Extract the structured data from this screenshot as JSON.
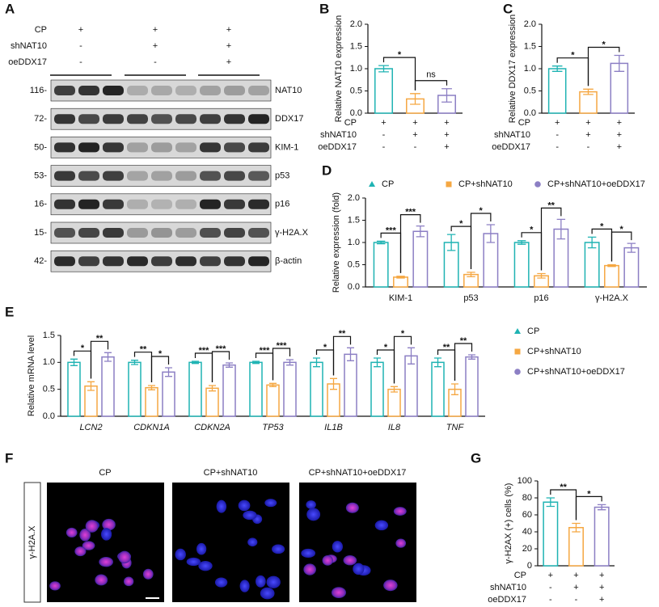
{
  "panel_labels": [
    "A",
    "B",
    "C",
    "D",
    "E",
    "F",
    "G"
  ],
  "blot": {
    "conditions": [
      {
        "name": "CP",
        "signs": [
          "+",
          "+",
          "+"
        ]
      },
      {
        "name": "shNAT10",
        "signs": [
          "-",
          "+",
          "+"
        ]
      },
      {
        "name": "oeDDX17",
        "signs": [
          "-",
          "-",
          "+"
        ]
      }
    ],
    "rows": [
      {
        "kda": "116-",
        "protein": "NAT10"
      },
      {
        "kda": "72-",
        "protein": "DDX17"
      },
      {
        "kda": "50-",
        "protein": "KIM-1"
      },
      {
        "kda": "53-",
        "protein": "p53"
      },
      {
        "kda": "16-",
        "protein": "p16"
      },
      {
        "kda": "15-",
        "protein": "γ-H2A.X"
      },
      {
        "kda": "42-",
        "protein": "β-actin"
      }
    ]
  },
  "microscopy": {
    "stain": "γ-H2A.X",
    "panels": [
      "CP",
      "CP+shNAT10",
      "CP+shNAT10+oeDDX17"
    ]
  },
  "chart_data": [
    {
      "type": "bar",
      "y_label": "Relative NAT10 expression",
      "values": [
        1.0,
        0.32,
        0.4
      ],
      "errors": [
        0.07,
        0.12,
        0.15
      ],
      "colors": [
        "#1fb3b3",
        "#f5a742",
        "#8c7fc4"
      ],
      "ylim": [
        0,
        2.0
      ],
      "yticks": [
        {
          "value": 0,
          "label": "0.0"
        },
        {
          "value": 0.5,
          "label": "0.5"
        },
        {
          "value": 1.0,
          "label": "1.0"
        },
        {
          "value": 1.5,
          "label": "1.5"
        },
        {
          "value": 2.0,
          "label": "2.0"
        }
      ],
      "conditions": [
        {
          "name": "CP",
          "signs": [
            "+",
            "+",
            "+"
          ]
        },
        {
          "name": "shNAT10",
          "signs": [
            "-",
            "+",
            "+"
          ]
        },
        {
          "name": "oeDDX17",
          "signs": [
            "-",
            "-",
            "+"
          ]
        }
      ],
      "significance": [
        {
          "bars": [
            0,
            1
          ],
          "label": "*"
        },
        {
          "bars": [
            1,
            2
          ],
          "label": "ns"
        }
      ]
    },
    {
      "type": "bar",
      "y_label": "Relative DDX17 expression",
      "values": [
        1.0,
        0.48,
        1.12
      ],
      "errors": [
        0.06,
        0.06,
        0.18
      ],
      "colors": [
        "#1fb3b3",
        "#f5a742",
        "#8c7fc4"
      ],
      "ylim": [
        0,
        2.0
      ],
      "yticks": [
        {
          "value": 0,
          "label": "0.0"
        },
        {
          "value": 0.5,
          "label": "0.5"
        },
        {
          "value": 1.0,
          "label": "1.0"
        },
        {
          "value": 1.5,
          "label": "1.5"
        },
        {
          "value": 2.0,
          "label": "2.0"
        }
      ],
      "conditions": [
        {
          "name": "CP",
          "signs": [
            "+",
            "+",
            "+"
          ]
        },
        {
          "name": "shNAT10",
          "signs": [
            "-",
            "+",
            "+"
          ]
        },
        {
          "name": "oeDDX17",
          "signs": [
            "-",
            "-",
            "+"
          ]
        }
      ],
      "significance": [
        {
          "bars": [
            0,
            1
          ],
          "label": "*"
        },
        {
          "bars": [
            1,
            2
          ],
          "label": "*"
        }
      ]
    },
    {
      "type": "bar",
      "y_label": "Relative expression (fold)",
      "categories": [
        "KIM-1",
        "p53",
        "p16",
        "γ-H2A.X"
      ],
      "series": [
        {
          "name": "CP",
          "color": "#1fb3b3",
          "marker": "triangle",
          "values": [
            1.0,
            1.0,
            1.0,
            1.0
          ],
          "errors": [
            0.03,
            0.18,
            0.04,
            0.12
          ]
        },
        {
          "name": "CP+shNAT10",
          "color": "#f5a742",
          "marker": "square",
          "values": [
            0.22,
            0.28,
            0.25,
            0.48
          ],
          "errors": [
            0.02,
            0.05,
            0.05,
            0.02
          ]
        },
        {
          "name": "CP+shNAT10+oeDDX17",
          "color": "#8c7fc4",
          "marker": "circle",
          "values": [
            1.25,
            1.2,
            1.3,
            0.88
          ],
          "errors": [
            0.12,
            0.2,
            0.22,
            0.1
          ]
        }
      ],
      "legend": "top",
      "ylim": [
        0,
        2.0
      ],
      "yticks": [
        {
          "value": 0,
          "label": "0.0"
        },
        {
          "value": 0.5,
          "label": "0.5"
        },
        {
          "value": 1.0,
          "label": "1.0"
        },
        {
          "value": 1.5,
          "label": "1.5"
        },
        {
          "value": 2.0,
          "label": "2.0"
        }
      ],
      "significance": [
        {
          "category": 0,
          "bars": [
            0,
            1
          ],
          "label": "***"
        },
        {
          "category": 0,
          "bars": [
            1,
            2
          ],
          "label": "***"
        },
        {
          "category": 1,
          "bars": [
            0,
            1
          ],
          "label": "*"
        },
        {
          "category": 1,
          "bars": [
            1,
            2
          ],
          "label": "*"
        },
        {
          "category": 2,
          "bars": [
            0,
            1
          ],
          "label": "*"
        },
        {
          "category": 2,
          "bars": [
            1,
            2
          ],
          "label": "**"
        },
        {
          "category": 3,
          "bars": [
            0,
            1
          ],
          "label": "*"
        },
        {
          "category": 3,
          "bars": [
            1,
            2
          ],
          "label": "*"
        }
      ]
    },
    {
      "type": "bar",
      "y_label": "Relative mRNA level",
      "categories": [
        "LCN2",
        "CDKN1A",
        "CDKN2A",
        "TP53",
        "IL1B",
        "IL8",
        "TNF"
      ],
      "italic_categories": true,
      "series": [
        {
          "name": "CP",
          "color": "#1fb3b3",
          "marker": "triangle",
          "values": [
            1.0,
            1.0,
            1.0,
            1.0,
            1.0,
            1.0,
            1.0
          ],
          "errors": [
            0.06,
            0.04,
            0.02,
            0.02,
            0.08,
            0.08,
            0.08
          ]
        },
        {
          "name": "CP+shNAT10",
          "color": "#f5a742",
          "marker": "square",
          "values": [
            0.56,
            0.53,
            0.52,
            0.58,
            0.6,
            0.5,
            0.5
          ],
          "errors": [
            0.08,
            0.04,
            0.05,
            0.03,
            0.1,
            0.05,
            0.1
          ]
        },
        {
          "name": "CP+shNAT10+oeDDX17",
          "color": "#8c7fc4",
          "marker": "circle",
          "values": [
            1.1,
            0.82,
            0.95,
            1.0,
            1.15,
            1.12,
            1.1
          ],
          "errors": [
            0.08,
            0.08,
            0.04,
            0.05,
            0.12,
            0.15,
            0.04
          ]
        }
      ],
      "legend": "right",
      "ylim": [
        0,
        1.5
      ],
      "yticks": [
        {
          "value": 0,
          "label": "0.0"
        },
        {
          "value": 0.5,
          "label": "0.5"
        },
        {
          "value": 1.0,
          "label": "1.0"
        },
        {
          "value": 1.5,
          "label": "1.5"
        }
      ],
      "significance": [
        {
          "category": 0,
          "bars": [
            0,
            1
          ],
          "label": "*"
        },
        {
          "category": 0,
          "bars": [
            1,
            2
          ],
          "label": "**"
        },
        {
          "category": 1,
          "bars": [
            0,
            1
          ],
          "label": "**"
        },
        {
          "category": 1,
          "bars": [
            1,
            2
          ],
          "label": "*"
        },
        {
          "category": 2,
          "bars": [
            0,
            1
          ],
          "label": "***"
        },
        {
          "category": 2,
          "bars": [
            1,
            2
          ],
          "label": "***"
        },
        {
          "category": 3,
          "bars": [
            0,
            1
          ],
          "label": "***"
        },
        {
          "category": 3,
          "bars": [
            1,
            2
          ],
          "label": "***"
        },
        {
          "category": 4,
          "bars": [
            0,
            1
          ],
          "label": "*"
        },
        {
          "category": 4,
          "bars": [
            1,
            2
          ],
          "label": "**"
        },
        {
          "category": 5,
          "bars": [
            0,
            1
          ],
          "label": "*"
        },
        {
          "category": 5,
          "bars": [
            1,
            2
          ],
          "label": "*"
        },
        {
          "category": 6,
          "bars": [
            0,
            1
          ],
          "label": "**"
        },
        {
          "category": 6,
          "bars": [
            1,
            2
          ],
          "label": "**"
        }
      ]
    },
    {
      "type": "bar",
      "y_label": "γ-H2AX (+) cells (%)",
      "values": [
        75,
        45,
        69
      ],
      "errors": [
        5,
        5,
        3
      ],
      "colors": [
        "#1fb3b3",
        "#f5a742",
        "#8c7fc4"
      ],
      "ylim": [
        0,
        100
      ],
      "yticks": [
        0,
        20,
        40,
        60,
        80,
        100
      ],
      "conditions": [
        {
          "name": "CP",
          "signs": [
            "+",
            "+",
            "+"
          ]
        },
        {
          "name": "shNAT10",
          "signs": [
            "-",
            "+",
            "+"
          ]
        },
        {
          "name": "oeDDX17",
          "signs": [
            "-",
            "-",
            "+"
          ]
        }
      ],
      "significance": [
        {
          "bars": [
            0,
            1
          ],
          "label": "**"
        },
        {
          "bars": [
            1,
            2
          ],
          "label": "*"
        }
      ]
    }
  ]
}
